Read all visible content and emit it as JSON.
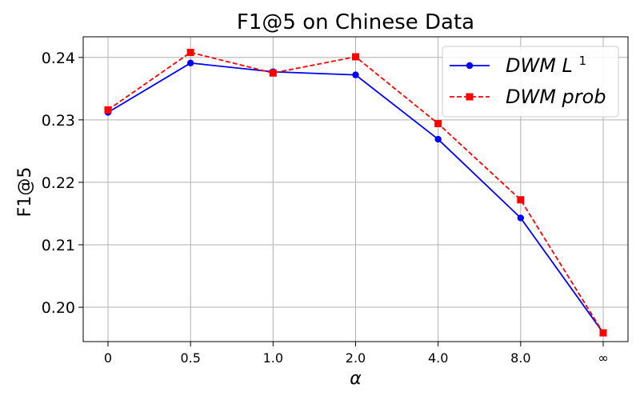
{
  "chart_data": {
    "type": "line",
    "title": "F1@5 on Chinese Data",
    "xlabel": "α",
    "ylabel": "F1@5",
    "categories": [
      "0",
      "0.5",
      "1.0",
      "2.0",
      "4.0",
      "8.0",
      "∞"
    ],
    "ylim": [
      0.1945,
      0.2433
    ],
    "yticks": [
      0.2,
      0.21,
      0.22,
      0.23,
      0.24
    ],
    "ytick_labels": [
      "0.20",
      "0.21",
      "0.22",
      "0.23",
      "0.24"
    ],
    "grid": true,
    "legend_position": "top-right",
    "series": [
      {
        "name": "DWM L",
        "name_superscript": "1",
        "color": "#0000ff",
        "linestyle": "solid",
        "marker": "circle",
        "values": [
          0.2312,
          0.2391,
          0.2377,
          0.2372,
          0.2269,
          0.2143,
          0.1959
        ]
      },
      {
        "name": "DWM prob",
        "color": "#ff0000",
        "linestyle": "dashed",
        "marker": "square",
        "values": [
          0.2316,
          0.2408,
          0.2375,
          0.2401,
          0.2294,
          0.2172,
          0.1959
        ]
      }
    ]
  }
}
